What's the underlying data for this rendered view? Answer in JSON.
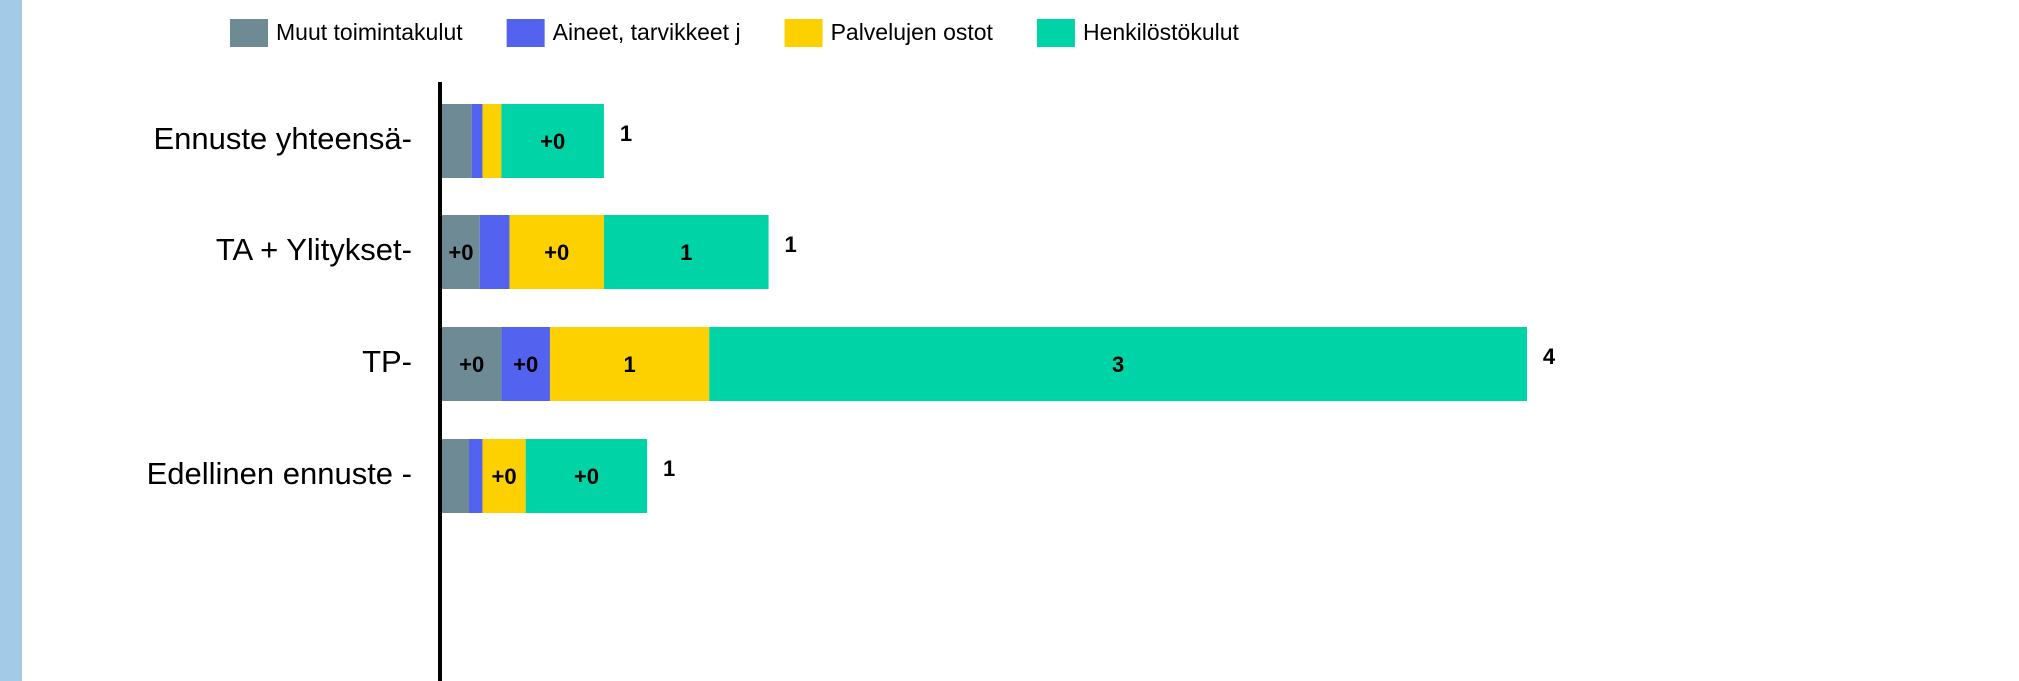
{
  "chart_data": {
    "type": "stacked_barh",
    "categories": [
      "Ennuste yhteensä-",
      "TA + Ylitykset-",
      "TP-",
      "Edellinen ennuste -"
    ],
    "series": [
      {
        "name": "Muut toimintakulut",
        "color": "#6e8a94",
        "values": [
          0.11,
          0.14,
          0.22,
          0.1
        ],
        "value_labels": [
          null,
          "+0",
          "+0",
          null
        ]
      },
      {
        "name": "Aineet, tarvikkeet j",
        "color": "#5462f0",
        "values": [
          0.04,
          0.11,
          0.18,
          0.05
        ],
        "value_labels": [
          null,
          null,
          "+0",
          null
        ]
      },
      {
        "name": "Palvelujen ostot",
        "color": "#fdd100",
        "values": [
          0.07,
          0.35,
          0.59,
          0.16
        ],
        "value_labels": [
          null,
          "+0",
          "1",
          "+0"
        ]
      },
      {
        "name": "Henkilöstökulut",
        "color": "#00d4a6",
        "values": [
          0.38,
          0.61,
          3.03,
          0.45
        ],
        "value_labels": [
          "+0",
          "1",
          "3",
          "+0"
        ]
      }
    ],
    "totals": [
      0.6,
      1.21,
      4.02,
      0.76
    ],
    "total_labels": [
      "1",
      "1",
      "4",
      "1"
    ],
    "legend": "top"
  }
}
